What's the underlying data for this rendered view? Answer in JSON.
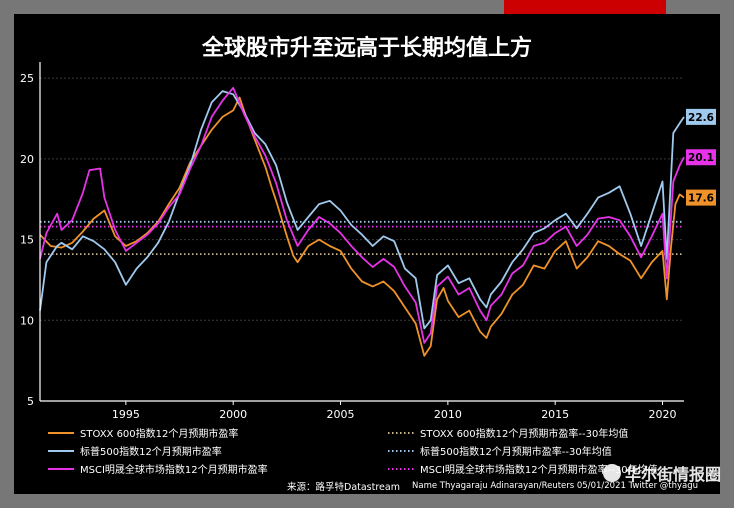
{
  "chart_data": {
    "type": "line",
    "title": "全球股市升至远高于长期均值上方",
    "x_range": [
      1991,
      2021
    ],
    "ylim": [
      5,
      26
    ],
    "yticks": [
      5,
      10,
      15,
      20,
      25
    ],
    "xticks": [
      1995,
      2000,
      2005,
      2010,
      2015,
      2020
    ],
    "grid": true,
    "legend_position": "bottom",
    "series": [
      {
        "name": "STOXX 600指数12个月预期市盈率",
        "color": "#f0922a",
        "end_label": "17.6",
        "points": [
          [
            1991,
            15.3
          ],
          [
            1991.5,
            14.6
          ],
          [
            1992,
            14.5
          ],
          [
            1992.5,
            14.8
          ],
          [
            1993,
            15.5
          ],
          [
            1993.5,
            16.3
          ],
          [
            1994,
            16.8
          ],
          [
            1994.5,
            15.2
          ],
          [
            1995,
            14.6
          ],
          [
            1995.5,
            14.9
          ],
          [
            1996,
            15.4
          ],
          [
            1996.5,
            16.1
          ],
          [
            1997,
            17.2
          ],
          [
            1997.5,
            18.2
          ],
          [
            1998,
            19.8
          ],
          [
            1998.5,
            20.8
          ],
          [
            1999,
            21.8
          ],
          [
            1999.5,
            22.6
          ],
          [
            2000,
            23.0
          ],
          [
            2000.3,
            23.8
          ],
          [
            2000.6,
            22.6
          ],
          [
            2001,
            21.2
          ],
          [
            2001.5,
            19.5
          ],
          [
            2001.8,
            18.2
          ],
          [
            2002,
            17.4
          ],
          [
            2002.5,
            15.2
          ],
          [
            2002.8,
            14.0
          ],
          [
            2003,
            13.6
          ],
          [
            2003.5,
            14.6
          ],
          [
            2004,
            15.0
          ],
          [
            2004.5,
            14.6
          ],
          [
            2005,
            14.3
          ],
          [
            2005.5,
            13.2
          ],
          [
            2006,
            12.4
          ],
          [
            2006.5,
            12.1
          ],
          [
            2007,
            12.4
          ],
          [
            2007.5,
            11.8
          ],
          [
            2008,
            10.8
          ],
          [
            2008.5,
            9.8
          ],
          [
            2008.9,
            7.8
          ],
          [
            2009.2,
            8.4
          ],
          [
            2009.5,
            11.3
          ],
          [
            2009.8,
            12.0
          ],
          [
            2010,
            11.2
          ],
          [
            2010.5,
            10.2
          ],
          [
            2011,
            10.6
          ],
          [
            2011.5,
            9.3
          ],
          [
            2011.8,
            8.9
          ],
          [
            2012,
            9.6
          ],
          [
            2012.5,
            10.4
          ],
          [
            2013,
            11.6
          ],
          [
            2013.5,
            12.2
          ],
          [
            2014,
            13.4
          ],
          [
            2014.5,
            13.2
          ],
          [
            2015,
            14.3
          ],
          [
            2015.5,
            14.9
          ],
          [
            2016,
            13.2
          ],
          [
            2016.5,
            13.9
          ],
          [
            2017,
            14.9
          ],
          [
            2017.5,
            14.6
          ],
          [
            2018,
            14.1
          ],
          [
            2018.5,
            13.7
          ],
          [
            2019,
            12.6
          ],
          [
            2019.5,
            13.6
          ],
          [
            2020,
            14.3
          ],
          [
            2020.2,
            11.3
          ],
          [
            2020.4,
            14.6
          ],
          [
            2020.6,
            17.2
          ],
          [
            2020.8,
            17.8
          ],
          [
            2021,
            17.6
          ]
        ]
      },
      {
        "name": "标普500指数12个月预期市盈率",
        "color": "#9fcaee",
        "end_label": "22.6",
        "points": [
          [
            1991,
            10.6
          ],
          [
            1991.3,
            13.6
          ],
          [
            1991.8,
            14.6
          ],
          [
            1992,
            14.8
          ],
          [
            1992.5,
            14.4
          ],
          [
            1993,
            15.2
          ],
          [
            1993.5,
            14.9
          ],
          [
            1994,
            14.4
          ],
          [
            1994.5,
            13.6
          ],
          [
            1995,
            12.2
          ],
          [
            1995.5,
            13.2
          ],
          [
            1996,
            13.9
          ],
          [
            1996.5,
            14.8
          ],
          [
            1997,
            16.1
          ],
          [
            1997.5,
            17.9
          ],
          [
            1998,
            19.6
          ],
          [
            1998.5,
            21.8
          ],
          [
            1999,
            23.5
          ],
          [
            1999.5,
            24.2
          ],
          [
            2000,
            24.0
          ],
          [
            2000.5,
            22.9
          ],
          [
            2001,
            21.6
          ],
          [
            2001.5,
            20.9
          ],
          [
            2002,
            19.6
          ],
          [
            2002.5,
            17.3
          ],
          [
            2003,
            15.6
          ],
          [
            2003.5,
            16.4
          ],
          [
            2004,
            17.2
          ],
          [
            2004.5,
            17.4
          ],
          [
            2005,
            16.8
          ],
          [
            2005.5,
            15.9
          ],
          [
            2006,
            15.3
          ],
          [
            2006.5,
            14.6
          ],
          [
            2007,
            15.2
          ],
          [
            2007.5,
            14.9
          ],
          [
            2008,
            13.2
          ],
          [
            2008.5,
            12.6
          ],
          [
            2008.9,
            9.5
          ],
          [
            2009.2,
            10.0
          ],
          [
            2009.5,
            12.8
          ],
          [
            2010,
            13.4
          ],
          [
            2010.5,
            12.3
          ],
          [
            2011,
            12.6
          ],
          [
            2011.5,
            11.3
          ],
          [
            2011.8,
            10.8
          ],
          [
            2012,
            11.6
          ],
          [
            2012.5,
            12.4
          ],
          [
            2013,
            13.6
          ],
          [
            2013.5,
            14.4
          ],
          [
            2014,
            15.4
          ],
          [
            2014.5,
            15.7
          ],
          [
            2015,
            16.2
          ],
          [
            2015.5,
            16.6
          ],
          [
            2016,
            15.7
          ],
          [
            2016.5,
            16.6
          ],
          [
            2017,
            17.6
          ],
          [
            2017.5,
            17.9
          ],
          [
            2018,
            18.3
          ],
          [
            2018.5,
            16.6
          ],
          [
            2019,
            14.6
          ],
          [
            2019.5,
            16.6
          ],
          [
            2020,
            18.6
          ],
          [
            2020.2,
            13.8
          ],
          [
            2020.5,
            21.6
          ],
          [
            2020.8,
            22.2
          ],
          [
            2021,
            22.6
          ]
        ]
      },
      {
        "name": "MSCI明晟全球市场指数12个月预期市盈率",
        "color": "#e633e8",
        "end_label": "20.1",
        "points": [
          [
            1991,
            13.8
          ],
          [
            1991.3,
            15.4
          ],
          [
            1991.8,
            16.6
          ],
          [
            1992,
            15.6
          ],
          [
            1992.5,
            16.2
          ],
          [
            1993,
            17.9
          ],
          [
            1993.3,
            19.3
          ],
          [
            1993.8,
            19.4
          ],
          [
            1994,
            17.6
          ],
          [
            1994.5,
            15.6
          ],
          [
            1995,
            14.3
          ],
          [
            1995.5,
            14.8
          ],
          [
            1996,
            15.3
          ],
          [
            1996.5,
            16.0
          ],
          [
            1997,
            17.0
          ],
          [
            1997.5,
            17.8
          ],
          [
            1998,
            19.4
          ],
          [
            1998.5,
            20.8
          ],
          [
            1999,
            22.6
          ],
          [
            1999.5,
            23.6
          ],
          [
            2000,
            24.4
          ],
          [
            2000.5,
            22.8
          ],
          [
            2001,
            21.4
          ],
          [
            2001.5,
            20.2
          ],
          [
            2002,
            18.5
          ],
          [
            2002.5,
            16.2
          ],
          [
            2003,
            14.6
          ],
          [
            2003.5,
            15.6
          ],
          [
            2004,
            16.4
          ],
          [
            2004.5,
            16.0
          ],
          [
            2005,
            15.4
          ],
          [
            2005.5,
            14.6
          ],
          [
            2006,
            13.9
          ],
          [
            2006.5,
            13.3
          ],
          [
            2007,
            13.8
          ],
          [
            2007.5,
            13.3
          ],
          [
            2008,
            12.1
          ],
          [
            2008.5,
            11.1
          ],
          [
            2008.9,
            8.6
          ],
          [
            2009.2,
            9.2
          ],
          [
            2009.5,
            12.1
          ],
          [
            2010,
            12.7
          ],
          [
            2010.5,
            11.6
          ],
          [
            2011,
            12.0
          ],
          [
            2011.5,
            10.6
          ],
          [
            2011.8,
            10.0
          ],
          [
            2012,
            10.9
          ],
          [
            2012.5,
            11.6
          ],
          [
            2013,
            12.9
          ],
          [
            2013.5,
            13.4
          ],
          [
            2014,
            14.6
          ],
          [
            2014.5,
            14.8
          ],
          [
            2015,
            15.4
          ],
          [
            2015.5,
            15.8
          ],
          [
            2016,
            14.6
          ],
          [
            2016.5,
            15.3
          ],
          [
            2017,
            16.3
          ],
          [
            2017.5,
            16.4
          ],
          [
            2018,
            16.2
          ],
          [
            2018.5,
            15.2
          ],
          [
            2019,
            13.9
          ],
          [
            2019.5,
            15.2
          ],
          [
            2020,
            16.6
          ],
          [
            2020.2,
            12.6
          ],
          [
            2020.5,
            18.6
          ],
          [
            2020.8,
            19.6
          ],
          [
            2021,
            20.1
          ]
        ]
      },
      {
        "name": "STOXX 600指数12个月预期市盈率--30年均值",
        "color": "#c8b48a",
        "style": "dotted",
        "constant": 14.1
      },
      {
        "name": "标普500指数12个月预期市盈率--30年均值",
        "color": "#9fcaee",
        "style": "dotted",
        "constant": 16.1
      },
      {
        "name": "MSCI明晟全球市场指数12个月预期市盈率--30年均值",
        "color": "#e633e8",
        "style": "dotted",
        "constant": 15.8
      }
    ]
  },
  "footer": {
    "source": "来源：路孚特Datastream",
    "credit": "Name Thyagaraju Adinarayan/Reuters 05/01/2021 Twitter @thyagu"
  },
  "watermark": "华尔街情报圈"
}
